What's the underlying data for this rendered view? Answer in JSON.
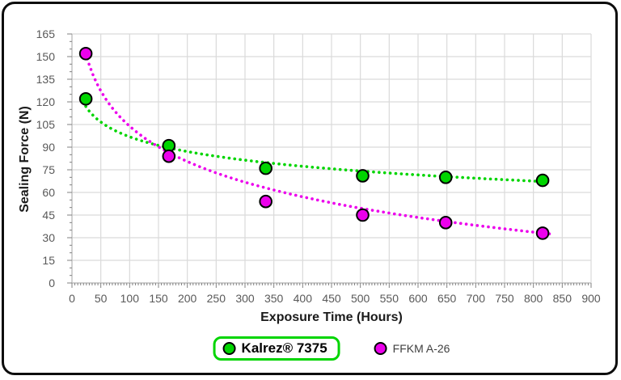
{
  "window": {
    "background": "#FFFFFF",
    "frame_border_color": "#0D0D0D"
  },
  "chart_data": {
    "type": "scatter",
    "title": "",
    "xlabel": "Exposure Time (Hours)",
    "ylabel": "Sealing Force (N)",
    "xlim": [
      0,
      900
    ],
    "ylim": [
      0,
      165
    ],
    "xticks": [
      0,
      50,
      100,
      150,
      200,
      250,
      300,
      350,
      400,
      450,
      500,
      550,
      600,
      650,
      700,
      750,
      800,
      850,
      900
    ],
    "yticks": [
      0,
      15,
      30,
      45,
      60,
      75,
      90,
      105,
      120,
      135,
      150,
      165
    ],
    "x_minor_tick_step": 5,
    "y_minor_tick_step": 5,
    "grid": true,
    "legend_position": "bottom-center",
    "x": [
      24,
      168,
      336,
      504,
      648,
      816
    ],
    "series": [
      {
        "name": "Kalrez® 7375",
        "color": "#00D500",
        "marker_outline": "#000000",
        "values": [
          122,
          91,
          76,
          71,
          70,
          68
        ],
        "trendline": {
          "type": "logarithmic",
          "intercept": 161.8,
          "coefficient": -14.1,
          "x_start": 24,
          "x_end": 830
        },
        "legend_boxed": true
      },
      {
        "name": "FFKM A-26",
        "color": "#EC00EC",
        "marker_outline": "#000000",
        "values": [
          152,
          84,
          54,
          45,
          40,
          33
        ],
        "trendline": {
          "type": "logarithmic",
          "intercept": 259.3,
          "coefficient": -33.75,
          "x_start": 24,
          "x_end": 830
        },
        "legend_boxed": false
      }
    ],
    "colors": {
      "gridline": "#DADADA",
      "axis": "#BFBFBF",
      "tick": "#808080",
      "tick_label": "#595959",
      "axis_title": "#1A1A1A"
    }
  }
}
